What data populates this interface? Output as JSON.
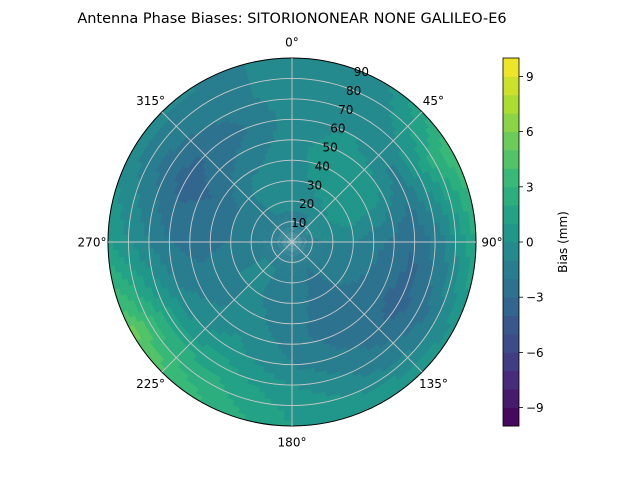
{
  "chart_data": {
    "type": "heatmap",
    "projection": "polar",
    "title": "Antenna Phase Biases: SITORIONONEAR   NONE GALILEO-E6",
    "theta_direction": "clockwise",
    "theta_zero": "top",
    "theta_tick_labels": [
      "0°",
      "45°",
      "90°",
      "135°",
      "180°",
      "225°",
      "270°",
      "315°"
    ],
    "theta_ticks_deg": [
      0,
      45,
      90,
      135,
      180,
      225,
      270,
      315
    ],
    "r_ticks": [
      10,
      20,
      30,
      40,
      50,
      60,
      70,
      80,
      90
    ],
    "r_tick_labels": [
      "10",
      "20",
      "30",
      "40",
      "50",
      "60",
      "70",
      "80",
      "90"
    ],
    "rlim": [
      0,
      90
    ],
    "grid": true,
    "colorbar": {
      "label": "Bias (mm)",
      "colormap": "viridis",
      "range": [
        -10,
        10
      ],
      "levels": 20,
      "ticks": [
        -9,
        -6,
        -3,
        0,
        3,
        6,
        9
      ],
      "tick_labels": [
        "−9",
        "−6",
        "−3",
        "0",
        "3",
        "6",
        "9"
      ]
    },
    "field_description": "mostly 0 to -3 mm over the hemisphere; negative bands near elevation 40-60 at azimuths 290-330 and 100-150; positive +3 to +6 mm toward the horizon at azimuth 215-240 and at 45-60",
    "grid_values": {
      "theta_deg": [
        0,
        30,
        60,
        90,
        120,
        150,
        180,
        210,
        240,
        270,
        300,
        330
      ],
      "r": [
        0,
        15,
        30,
        45,
        60,
        75,
        90
      ],
      "values": [
        [
          -1.5,
          -1.0,
          -0.5,
          -0.5,
          -0.5,
          -0.5,
          -1.0
        ],
        [
          -1.5,
          -1.0,
          0.5,
          1.0,
          0.0,
          -1.0,
          -0.5
        ],
        [
          -1.5,
          -0.5,
          1.0,
          0.5,
          -1.5,
          1.5,
          4.0
        ],
        [
          -1.5,
          -1.0,
          -1.0,
          -2.0,
          -3.0,
          -1.0,
          2.0
        ],
        [
          -1.5,
          -1.5,
          -1.5,
          -2.5,
          -3.5,
          -2.0,
          0.5
        ],
        [
          -1.5,
          -2.0,
          -2.5,
          -3.0,
          -2.0,
          -1.0,
          1.0
        ],
        [
          -1.5,
          -1.5,
          -1.5,
          -1.5,
          -1.0,
          0.5,
          1.0
        ],
        [
          -1.5,
          -1.0,
          -1.0,
          -0.5,
          0.5,
          2.0,
          3.0
        ],
        [
          -1.5,
          -1.0,
          -1.0,
          -1.5,
          -0.5,
          2.5,
          5.5
        ],
        [
          -1.5,
          -1.5,
          -2.0,
          -2.5,
          -2.0,
          -0.5,
          1.0
        ],
        [
          -1.5,
          -1.5,
          -2.0,
          -3.0,
          -3.5,
          -2.0,
          -0.5
        ],
        [
          -1.5,
          -1.0,
          -0.5,
          -1.5,
          -2.5,
          -1.5,
          -1.0
        ]
      ]
    }
  }
}
